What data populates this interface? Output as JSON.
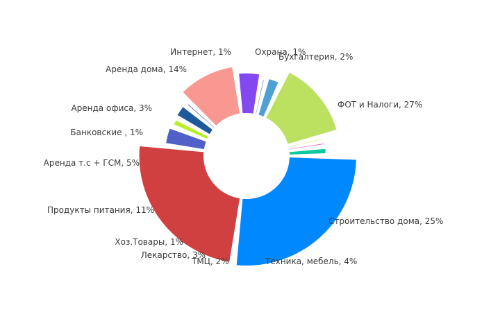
{
  "chart_data": {
    "type": "pie",
    "variant": "donut-with-variable-radius",
    "legend": "none",
    "slices": [
      {
        "label": "ФОТ и Налоги, 27%",
        "name": "ФОТ и Налоги",
        "value": 27,
        "color": "#0088ff"
      },
      {
        "label": "Строительство дома, 25%",
        "name": "Строительство дома",
        "value": 25,
        "color": "#d04040"
      },
      {
        "label": "Техника, мебель, 4%",
        "name": "Техника, мебель",
        "value": 4,
        "color": "#5060c8"
      },
      {
        "label": "ТМЦ, 2%",
        "name": "ТМЦ",
        "value": 2,
        "color": "#b8f028"
      },
      {
        "label": "Лекарство, 3%",
        "name": "Лекарство",
        "value": 3,
        "color": "#1c5a9c"
      },
      {
        "label": "Хоз.Товары, 1%",
        "name": "Хоз.Товары",
        "value": 1,
        "color": "#4848a8"
      },
      {
        "label": "Продукты питания, 11%",
        "name": "Продукты питания",
        "value": 11,
        "color": "#f89890"
      },
      {
        "label": "Аренда т.с + ГСМ, 5%",
        "name": "Аренда т.с + ГСМ",
        "value": 5,
        "color": "#8448f0"
      },
      {
        "label": "Банковские , 1%",
        "name": "Банковские ",
        "value": 1,
        "color": "#7090b0"
      },
      {
        "label": "Аренда офиса, 3%",
        "name": "Аренда офиса",
        "value": 3,
        "color": "#50a0d8"
      },
      {
        "label": "Аренда дома, 14%",
        "name": "Аренда дома",
        "value": 14,
        "color": "#bce060"
      },
      {
        "label": "Интернет, 1%",
        "name": "Интернет",
        "value": 1,
        "color": "#e0f890"
      },
      {
        "label": "Охрана, 1%",
        "name": "Охрана",
        "value": 1,
        "color": "#e040b0"
      },
      {
        "label": "Бухгалтерия, 2%",
        "name": "Бухгалтерия",
        "value": 2,
        "color": "#10c8a0"
      }
    ]
  }
}
